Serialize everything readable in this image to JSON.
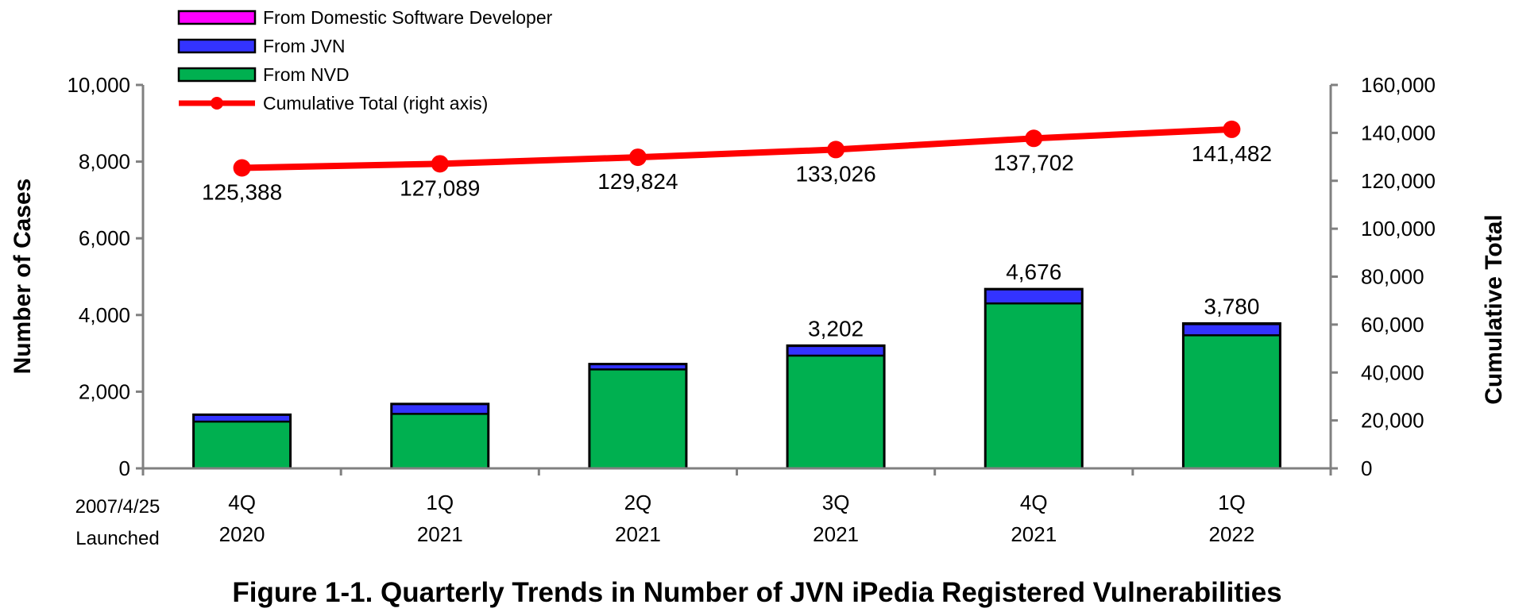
{
  "chart_data": {
    "type": "bar",
    "title": "Figure 1-1. Quarterly Trends in Number of JVN iPedia Registered Vulnerabilities",
    "ylabel": "Number of Cases",
    "y2label": "Cumulative Total",
    "ylim": [
      0,
      10000
    ],
    "y2lim": [
      0,
      160000
    ],
    "yticks": [
      "0",
      "2,000",
      "4,000",
      "6,000",
      "8,000",
      "10,000"
    ],
    "y2ticks": [
      "0",
      "20,000",
      "40,000",
      "60,000",
      "80,000",
      "100,000",
      "120,000",
      "140,000",
      "160,000"
    ],
    "launch_note": [
      "2007/4/25",
      "Launched"
    ],
    "categories": [
      [
        "4Q",
        "2020"
      ],
      [
        "1Q",
        "2021"
      ],
      [
        "2Q",
        "2021"
      ],
      [
        "3Q",
        "2021"
      ],
      [
        "4Q",
        "2021"
      ],
      [
        "1Q",
        "2022"
      ]
    ],
    "stacked": true,
    "series": [
      {
        "name": "From NVD",
        "color": "#00b050",
        "values": [
          1220,
          1420,
          2580,
          2940,
          4300,
          3470
        ]
      },
      {
        "name": "From JVN",
        "color": "#3333ff",
        "values": [
          180,
          260,
          140,
          250,
          370,
          290
        ]
      },
      {
        "name": "From Domestic Software Developer",
        "color": "#ff00ff",
        "values": [
          0,
          0,
          0,
          12,
          6,
          20
        ]
      }
    ],
    "bar_totals": [
      "",
      "",
      "",
      "3,202",
      "4,676",
      "3,780"
    ],
    "line_series": {
      "name": "Cumulative Total (right axis)",
      "axis": "right",
      "color": "#ff0000",
      "values": [
        125388,
        127089,
        129824,
        133026,
        137702,
        141482
      ],
      "labels": [
        "125,388",
        "127,089",
        "129,824",
        "133,026",
        "137,702",
        "141,482"
      ]
    },
    "legend_order": [
      "From Domestic Software Developer",
      "From JVN",
      "From NVD",
      "Cumulative Total (right axis)"
    ],
    "legend_position": "top-left",
    "grid": false
  }
}
